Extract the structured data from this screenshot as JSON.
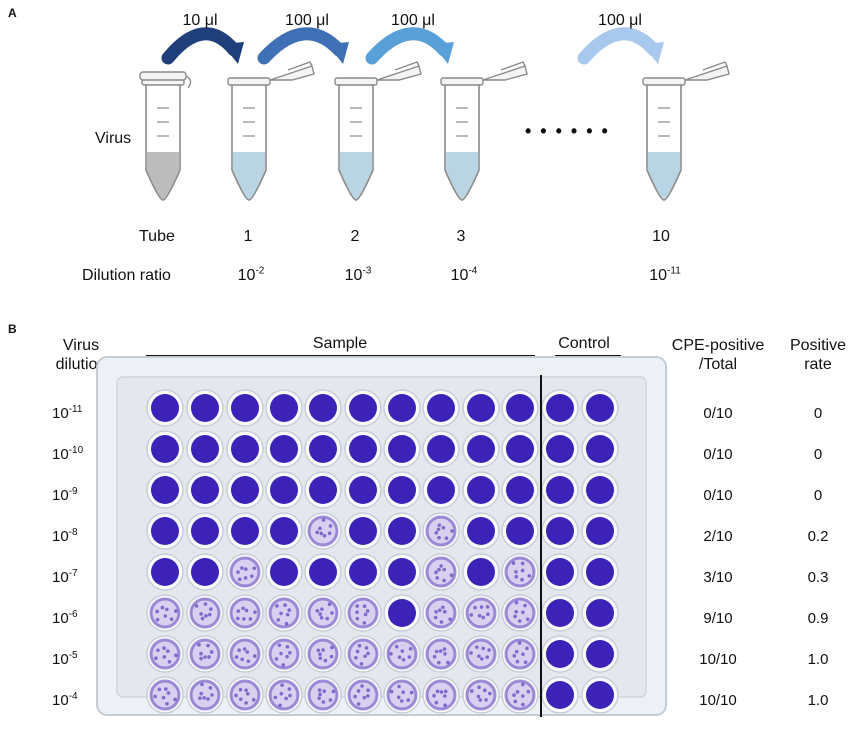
{
  "panel_a": {
    "letter": "A",
    "virus_label": "Virus",
    "volumes": [
      "10 μl",
      "100 μl",
      "100 μl",
      "100 μl"
    ],
    "ellipsis": "• • • • • •",
    "tube_row_label": "Tube",
    "tubes": [
      "1",
      "2",
      "3",
      "10"
    ],
    "dilution_row_label": "Dilution ratio",
    "dilution_base": "10",
    "dilution_exponents": [
      "-2",
      "-3",
      "-4",
      "-11"
    ],
    "colors": {
      "arrow_dark": "#1f3f7a",
      "arrow_mid": "#3f6fb5",
      "arrow_light": "#5aa0d8",
      "arrow_pale": "#a9c8ee",
      "liquid": "#b9d4e2",
      "virus_liquid": "#bcbcbc"
    }
  },
  "panel_b": {
    "letter": "B",
    "header_virus_dilution": [
      "Virus",
      "dilution"
    ],
    "header_sample": "Sample",
    "header_control": "Control",
    "header_cpe": [
      "CPE-positive",
      "/Total"
    ],
    "header_rate": [
      "Positive",
      "rate"
    ],
    "dilution_base": "10",
    "rows": [
      {
        "exp": "-11",
        "cpe": "0/10",
        "rate": "0"
      },
      {
        "exp": "-10",
        "cpe": "0/10",
        "rate": "0"
      },
      {
        "exp": "-9",
        "cpe": "0/10",
        "rate": "0"
      },
      {
        "exp": "-8",
        "cpe": "2/10",
        "rate": "0.2"
      },
      {
        "exp": "-7",
        "cpe": "3/10",
        "rate": "0.3"
      },
      {
        "exp": "-6",
        "cpe": "9/10",
        "rate": "0.9"
      },
      {
        "exp": "-5",
        "cpe": "10/10",
        "rate": "1.0"
      },
      {
        "exp": "-4",
        "cpe": "10/10",
        "rate": "1.0"
      }
    ],
    "well_states": [
      [
        0,
        0,
        0,
        0,
        0,
        0,
        0,
        0,
        0,
        0,
        0,
        0
      ],
      [
        0,
        0,
        0,
        0,
        0,
        0,
        0,
        0,
        0,
        0,
        0,
        0
      ],
      [
        0,
        0,
        0,
        0,
        0,
        0,
        0,
        0,
        0,
        0,
        0,
        0
      ],
      [
        0,
        0,
        0,
        0,
        1,
        0,
        0,
        1,
        0,
        0,
        0,
        0
      ],
      [
        0,
        0,
        1,
        0,
        0,
        0,
        0,
        1,
        0,
        1,
        0,
        0
      ],
      [
        1,
        1,
        1,
        1,
        1,
        1,
        0,
        1,
        1,
        1,
        0,
        0
      ],
      [
        1,
        1,
        1,
        1,
        1,
        1,
        1,
        1,
        1,
        1,
        0,
        0
      ],
      [
        1,
        1,
        1,
        1,
        1,
        1,
        1,
        1,
        1,
        1,
        0,
        0
      ]
    ],
    "colors": {
      "stained": "#3d22b8",
      "cleared": "#d7d0ee",
      "plate": "#edf0f4",
      "well_rim": "#f8f9fb"
    }
  }
}
